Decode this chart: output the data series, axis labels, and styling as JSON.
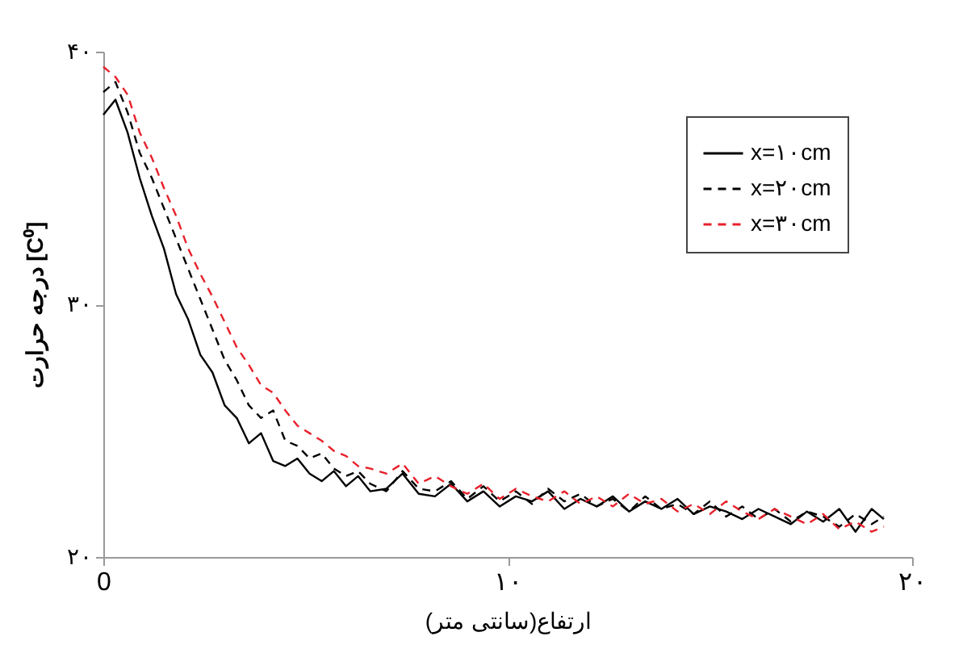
{
  "chart_data": {
    "type": "line",
    "xlabel": "ارتفاع(سانتی متر)",
    "ylabel": "درجه حرارت  [C⁰]",
    "x": [
      0,
      0.3,
      0.6,
      0.9,
      1.2,
      1.5,
      1.8,
      2.1,
      2.4,
      2.7,
      3.0,
      3.3,
      3.6,
      3.9,
      4.2,
      4.5,
      4.8,
      5.1,
      5.4,
      5.7,
      6.0,
      6.3,
      6.6,
      7.0,
      7.4,
      7.8,
      8.2,
      8.6,
      9.0,
      9.4,
      9.8,
      10.2,
      10.6,
      11.0,
      11.4,
      11.8,
      12.2,
      12.6,
      13.0,
      13.4,
      13.8,
      14.2,
      14.6,
      15.0,
      15.4,
      15.8,
      16.2,
      16.6,
      17.0,
      17.4,
      17.8,
      18.2,
      18.6,
      19.0,
      19.3
    ],
    "series": [
      {
        "name": "x=۱۰cm",
        "color": "#000000",
        "line_style": "solid",
        "values": [
          37.5,
          38.1,
          36.8,
          35.0,
          33.5,
          32.2,
          30.4,
          29.4,
          28.0,
          27.3,
          26.0,
          25.5,
          24.5,
          24.9,
          23.8,
          23.6,
          23.9,
          23.3,
          23.0,
          23.4,
          22.8,
          23.2,
          22.6,
          22.7,
          23.3,
          22.5,
          22.4,
          22.9,
          22.2,
          22.6,
          22.0,
          22.4,
          22.2,
          22.6,
          21.9,
          22.3,
          22.0,
          22.4,
          21.8,
          22.2,
          21.9,
          22.3,
          21.7,
          22.0,
          21.8,
          21.5,
          21.9,
          21.6,
          21.3,
          21.8,
          21.4,
          21.9,
          21.0,
          21.9,
          21.5
        ]
      },
      {
        "name": "x=۲۰cm",
        "color": "#000000",
        "line_style": "dashed",
        "values": [
          38.4,
          38.8,
          37.6,
          36.0,
          35.0,
          33.8,
          32.6,
          31.4,
          30.2,
          29.0,
          27.8,
          27.0,
          26.0,
          25.5,
          25.8,
          24.6,
          24.4,
          23.9,
          24.1,
          23.5,
          23.2,
          23.4,
          22.9,
          22.6,
          23.4,
          22.7,
          22.6,
          23.0,
          22.3,
          22.8,
          22.2,
          22.6,
          22.1,
          22.7,
          22.2,
          22.5,
          22.0,
          22.3,
          21.8,
          22.4,
          21.9,
          22.1,
          21.7,
          22.2,
          21.6,
          22.0,
          21.5,
          21.9,
          21.4,
          21.8,
          21.6,
          21.2,
          21.7,
          21.3,
          21.6
        ]
      },
      {
        "name": "x=۳۰cm",
        "color": "#e8202a",
        "line_style": "dashed",
        "values": [
          39.4,
          39.0,
          38.3,
          36.8,
          35.8,
          34.6,
          33.5,
          32.2,
          31.2,
          30.3,
          29.3,
          28.3,
          27.6,
          26.8,
          26.5,
          25.8,
          25.2,
          24.9,
          24.6,
          24.2,
          24.0,
          23.6,
          23.5,
          23.3,
          23.7,
          22.9,
          23.2,
          22.8,
          22.5,
          22.9,
          22.3,
          22.7,
          22.4,
          22.2,
          22.6,
          22.1,
          22.4,
          22.0,
          22.5,
          22.1,
          22.3,
          21.8,
          22.1,
          21.7,
          22.2,
          21.8,
          21.5,
          21.9,
          21.6,
          21.3,
          21.7,
          21.1,
          21.4,
          21.0,
          21.2
        ]
      }
    ],
    "xlim": [
      0,
      20
    ],
    "xticks": [
      0,
      {
        "value": 10,
        "label": "۱۰"
      },
      {
        "value": 20,
        "label": "۲۰"
      }
    ],
    "ylim": [
      20,
      40
    ],
    "yticks": [
      {
        "value": 20,
        "label": "۲۰"
      },
      {
        "value": 30,
        "label": "۳۰"
      },
      {
        "value": 40,
        "label": "۴۰"
      }
    ],
    "grid": false,
    "legend": "top right"
  }
}
